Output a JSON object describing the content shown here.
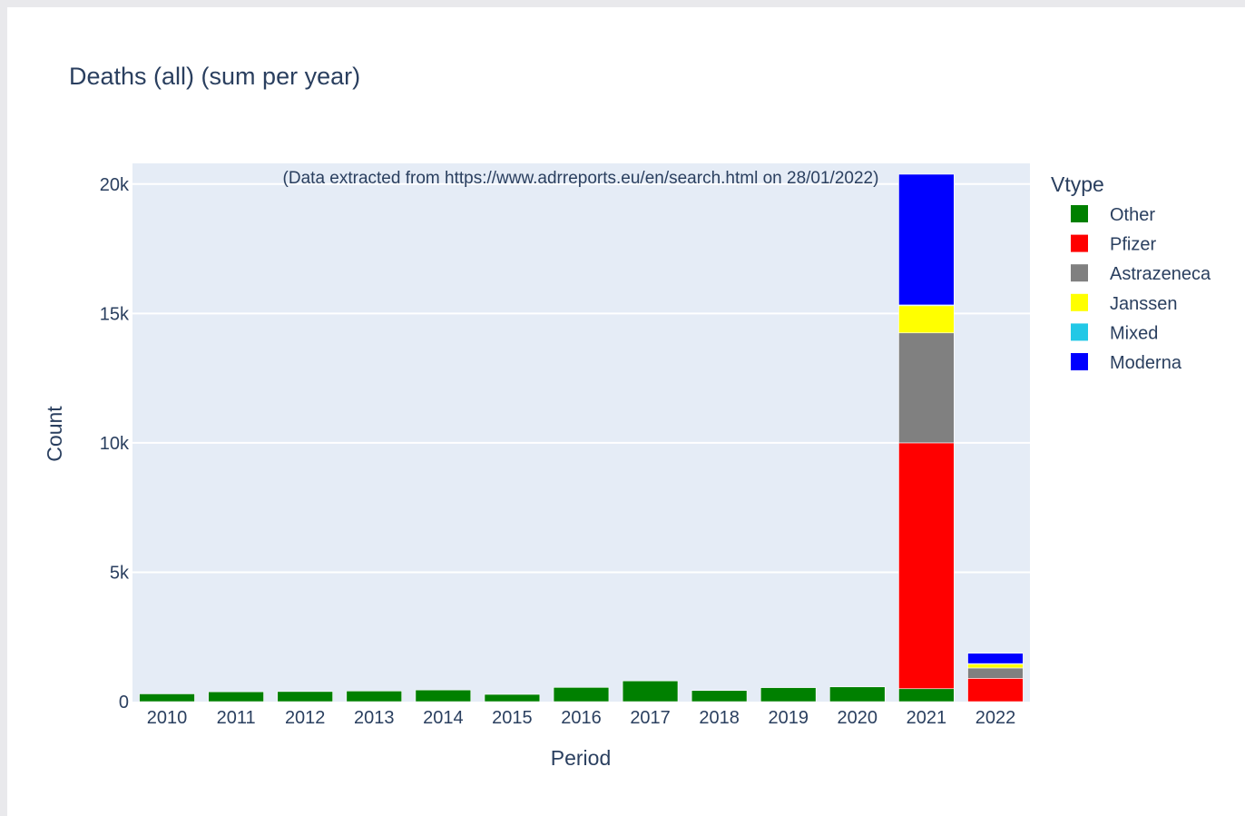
{
  "chart_data": {
    "type": "bar",
    "barmode": "stack",
    "title": "Deaths (all) (sum per year)",
    "annotation": "(Data extracted from https://www.adrreports.eu/en/search.html on 28/01/2022)",
    "xlabel": "Period",
    "ylabel": "Count",
    "ylim": [
      0,
      20800
    ],
    "yticks": [
      {
        "value": 0,
        "label": "0"
      },
      {
        "value": 5000,
        "label": "5k"
      },
      {
        "value": 10000,
        "label": "10k"
      },
      {
        "value": 15000,
        "label": "15k"
      },
      {
        "value": 20000,
        "label": "20k"
      }
    ],
    "grid": true,
    "categories": [
      "2010",
      "2011",
      "2012",
      "2013",
      "2014",
      "2015",
      "2016",
      "2017",
      "2018",
      "2019",
      "2020",
      "2021",
      "2022"
    ],
    "legend_title": "Vtype",
    "legend_position": "right",
    "series": [
      {
        "name": "Other",
        "color": "#008000",
        "values": [
          300,
          380,
          390,
          410,
          450,
          280,
          550,
          800,
          430,
          540,
          570,
          500,
          0
        ]
      },
      {
        "name": "Pfizer",
        "color": "#ff0000",
        "values": [
          0,
          0,
          0,
          0,
          0,
          0,
          0,
          0,
          0,
          0,
          0,
          9500,
          900
        ]
      },
      {
        "name": "Astrazeneca",
        "color": "#808080",
        "values": [
          0,
          0,
          0,
          0,
          0,
          0,
          0,
          0,
          0,
          0,
          0,
          4250,
          400
        ]
      },
      {
        "name": "Janssen",
        "color": "#ffff00",
        "values": [
          0,
          0,
          0,
          0,
          0,
          0,
          0,
          0,
          0,
          0,
          0,
          1050,
          150
        ]
      },
      {
        "name": "Mixed",
        "color": "#22c8e6",
        "values": [
          0,
          0,
          0,
          0,
          0,
          0,
          0,
          0,
          0,
          0,
          0,
          30,
          20
        ]
      },
      {
        "name": "Moderna",
        "color": "#0000ff",
        "values": [
          0,
          0,
          0,
          0,
          0,
          0,
          0,
          0,
          0,
          0,
          0,
          5050,
          400
        ]
      }
    ]
  }
}
